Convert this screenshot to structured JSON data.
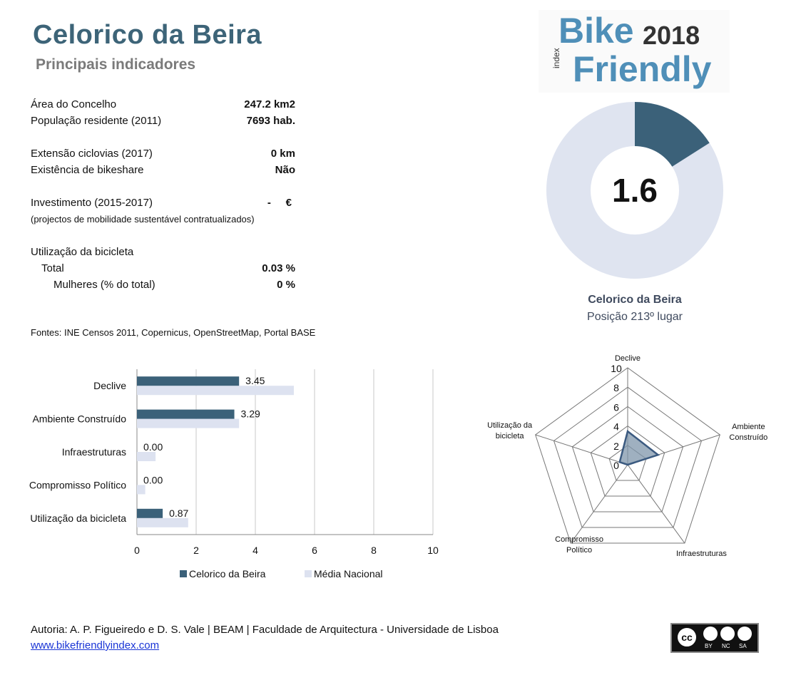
{
  "header": {
    "title": "Celorico da Beira",
    "subtitle": "Principais indicadores"
  },
  "logo": {
    "word1": "Bike",
    "year": "2018",
    "small": "index",
    "word2": "Friendly",
    "color_primary": "#4f8fb8",
    "color_dark": "#333333"
  },
  "indicators": [
    {
      "label": "Área do Concelho",
      "value": "247.2 km2"
    },
    {
      "label": "População residente (2011)",
      "value": "7693 hab."
    },
    {
      "label": "Extensão ciclovias (2017)",
      "value": "0 km"
    },
    {
      "label": "Existência de bikeshare",
      "value": "Não"
    },
    {
      "label": "Investimento (2015-2017)",
      "value": "-     €"
    },
    {
      "label": "Utilização da bicicleta",
      "value": ""
    },
    {
      "label": "Total",
      "value": "0.03 %"
    },
    {
      "label": "Mulheres (% do total)",
      "value": "0 %"
    }
  ],
  "investment_note": "(projectos de mobilidade sustentável contratualizados)",
  "sources": "Fontes: INE Censos 2011, Copernicus, OpenStreetMap,  Portal BASE",
  "score": {
    "value": "1.6",
    "fraction": 0.16,
    "place": "Celorico da Beira",
    "position": "Posição 213º lugar",
    "color_fill": "#3b6179",
    "color_rest": "#dfe4f0"
  },
  "chart_data": [
    {
      "type": "bar",
      "orientation": "horizontal",
      "categories": [
        "Declive",
        "Ambiente Construído",
        "Infraestruturas",
        "Compromisso Político",
        "Utilização da bicicleta"
      ],
      "series": [
        {
          "name": "Celorico da Beira",
          "values": [
            3.45,
            3.29,
            0.0,
            0.0,
            0.87
          ],
          "color": "#3b6179"
        },
        {
          "name": "Média Nacional",
          "values": [
            5.3,
            3.45,
            0.63,
            0.28,
            1.73
          ],
          "color": "#dde2f0"
        }
      ],
      "data_labels": [
        "3.45",
        "3.29",
        "0.00",
        "0.00",
        "0.87"
      ],
      "xticks": [
        "0",
        "2",
        "4",
        "6",
        "8",
        "10"
      ],
      "xlim": [
        0,
        10
      ],
      "grid": true,
      "legend": "bottom"
    },
    {
      "type": "radar",
      "axes": [
        "Declive",
        "Ambiente Construído",
        "Infraestruturas",
        "Compromisso Político",
        "Utilização da bicicleta"
      ],
      "axis_labels": [
        [
          "Declive"
        ],
        [
          "Ambiente",
          "Construído"
        ],
        [
          "Infraestruturas"
        ],
        [
          "Compromisso",
          "Político"
        ],
        [
          "Utilização da",
          "bicicleta"
        ]
      ],
      "values": [
        3.45,
        3.29,
        0.0,
        0.0,
        0.87
      ],
      "ticks": [
        "0",
        "2",
        "4",
        "6",
        "8",
        "10"
      ],
      "range": [
        0,
        10
      ],
      "color": "#3b5a80"
    }
  ],
  "footer": {
    "authors": "Autoria: A. P. Figueiredo e D. S. Vale | BEAM | Faculdade de Arquitectura - Universidade de Lisboa",
    "link": "www.bikefriendlyindex.com",
    "license": [
      "cc",
      "BY",
      "NC",
      "SA"
    ]
  }
}
